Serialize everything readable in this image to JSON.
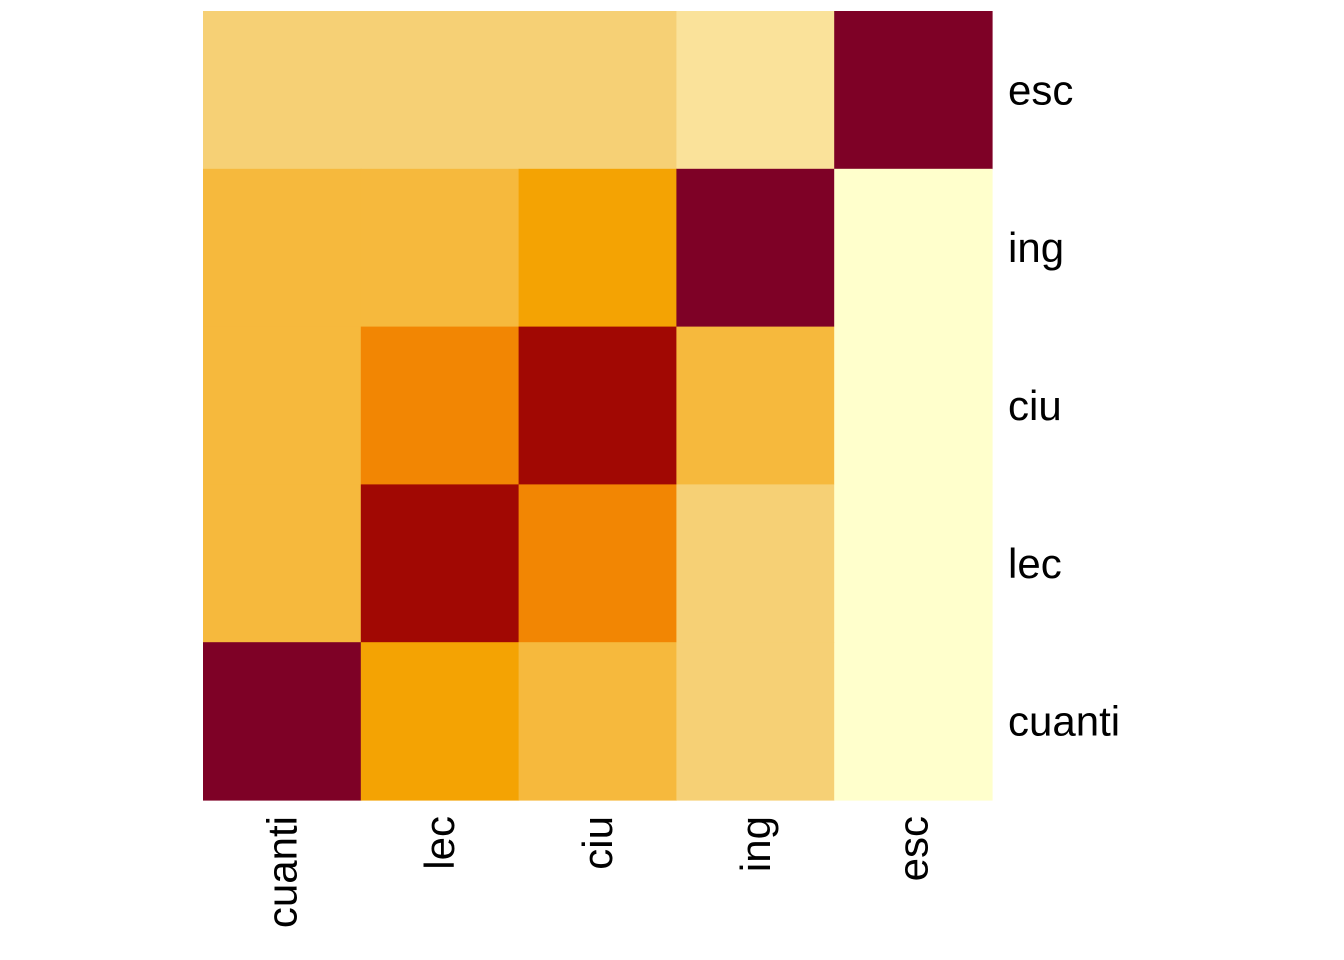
{
  "chart_data": {
    "type": "heatmap",
    "title": "",
    "xlabel": "",
    "ylabel": "",
    "x_categories": [
      "cuanti",
      "lec",
      "ciu",
      "ing",
      "esc"
    ],
    "y_categories_bottom_to_top": [
      "cuanti",
      "lec",
      "ciu",
      "ing",
      "esc"
    ],
    "rows": [
      {
        "y": "esc",
        "cells": [
          {
            "x": "cuanti",
            "color": "#F6D075"
          },
          {
            "x": "lec",
            "color": "#F6D075"
          },
          {
            "x": "ciu",
            "color": "#F6D075"
          },
          {
            "x": "ing",
            "color": "#FAE29A"
          },
          {
            "x": "esc",
            "color": "#7E0126"
          }
        ]
      },
      {
        "y": "ing",
        "cells": [
          {
            "x": "cuanti",
            "color": "#F6B93D"
          },
          {
            "x": "lec",
            "color": "#F6B93D"
          },
          {
            "x": "ciu",
            "color": "#F4A303"
          },
          {
            "x": "ing",
            "color": "#7E0126"
          },
          {
            "x": "esc",
            "color": "#FFFFCC"
          }
        ]
      },
      {
        "y": "ciu",
        "cells": [
          {
            "x": "cuanti",
            "color": "#F6B93D"
          },
          {
            "x": "lec",
            "color": "#F28603"
          },
          {
            "x": "ciu",
            "color": "#A10803"
          },
          {
            "x": "ing",
            "color": "#F6B93D"
          },
          {
            "x": "esc",
            "color": "#FFFFCC"
          }
        ]
      },
      {
        "y": "lec",
        "cells": [
          {
            "x": "cuanti",
            "color": "#F6B93D"
          },
          {
            "x": "lec",
            "color": "#A10803"
          },
          {
            "x": "ciu",
            "color": "#F28603"
          },
          {
            "x": "ing",
            "color": "#F6D075"
          },
          {
            "x": "esc",
            "color": "#FFFFCC"
          }
        ]
      },
      {
        "y": "cuanti",
        "cells": [
          {
            "x": "cuanti",
            "color": "#7E0126"
          },
          {
            "x": "lec",
            "color": "#F4A303"
          },
          {
            "x": "ciu",
            "color": "#F6B93D"
          },
          {
            "x": "ing",
            "color": "#F6D075"
          },
          {
            "x": "esc",
            "color": "#FFFFCC"
          }
        ]
      }
    ],
    "legend": "none",
    "grid": false
  }
}
